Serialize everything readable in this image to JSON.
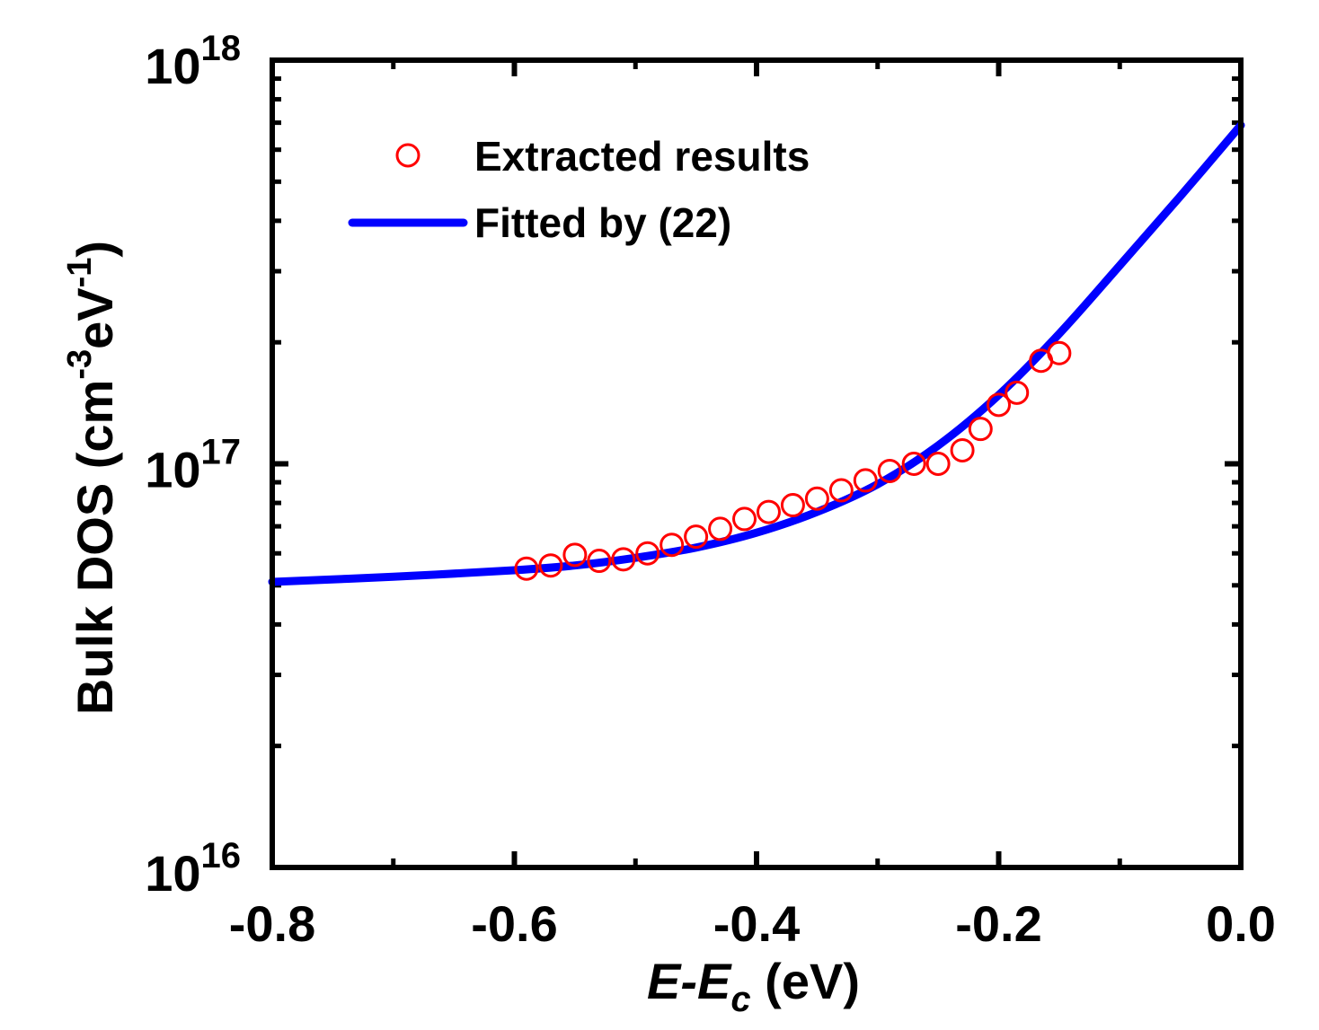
{
  "chart_data": {
    "type": "scatter",
    "xlabel": {
      "main": "E-E",
      "sub": "c",
      "unit": " (eV)"
    },
    "ylabel": {
      "prefix": "Bulk DOS (cm",
      "exp1": "-3",
      "mid": "eV",
      "exp2": "-1",
      "suffix": ")"
    },
    "xlim": [
      -0.8,
      0.0
    ],
    "ylim": [
      1e+16,
      1e+18
    ],
    "yscale": "log",
    "x_ticks": [
      {
        "value": -0.8,
        "label": "-0.8"
      },
      {
        "value": -0.6,
        "label": "-0.6"
      },
      {
        "value": -0.4,
        "label": "-0.4"
      },
      {
        "value": -0.2,
        "label": "-0.2"
      },
      {
        "value": 0.0,
        "label": "0.0"
      }
    ],
    "x_minor_ticks": [
      -0.7,
      -0.5,
      -0.3,
      -0.1
    ],
    "y_ticks": [
      {
        "value": 1e+16,
        "base": "10",
        "exp": "16"
      },
      {
        "value": 1e+17,
        "base": "10",
        "exp": "17"
      },
      {
        "value": 1e+18,
        "base": "10",
        "exp": "18"
      }
    ],
    "legend_position": "top-left",
    "series": [
      {
        "name": "Extracted results",
        "kind": "scatter",
        "marker": "open-circle",
        "color": "#ff0000",
        "x": [
          -0.59,
          -0.57,
          -0.55,
          -0.53,
          -0.51,
          -0.49,
          -0.47,
          -0.45,
          -0.43,
          -0.41,
          -0.39,
          -0.37,
          -0.35,
          -0.33,
          -0.31,
          -0.29,
          -0.27,
          -0.25,
          -0.23,
          -0.215,
          -0.2,
          -0.185,
          -0.165,
          -0.15
        ],
        "y": [
          5.5e+16,
          5.6e+16,
          5.95e+16,
          5.75e+16,
          5.8e+16,
          6e+16,
          6.3e+16,
          6.6e+16,
          6.9e+16,
          7.3e+16,
          7.6e+16,
          7.9e+16,
          8.2e+16,
          8.6e+16,
          9.1e+16,
          9.6e+16,
          1e+17,
          1e+17,
          1.08e+17,
          1.22e+17,
          1.4e+17,
          1.5e+17,
          1.8e+17,
          1.88e+17
        ]
      },
      {
        "name": "Fitted by (22)",
        "kind": "line",
        "color": "#0000ff",
        "x": [
          -0.8,
          -0.7,
          -0.6,
          -0.55,
          -0.5,
          -0.45,
          -0.4,
          -0.35,
          -0.3,
          -0.25,
          -0.2,
          -0.15,
          -0.1,
          -0.05,
          0.0
        ],
        "y": [
          5.1e+16,
          5.25e+16,
          5.45e+16,
          5.6e+16,
          5.85e+16,
          6.2e+16,
          6.75e+16,
          7.6e+16,
          8.9e+16,
          1.11e+17,
          1.48e+17,
          2.1e+17,
          3.1e+17,
          4.6e+17,
          6.9e+17
        ]
      }
    ]
  },
  "colors": {
    "scatter": "#ff0000",
    "line": "#0000ff",
    "axis": "#000000"
  }
}
